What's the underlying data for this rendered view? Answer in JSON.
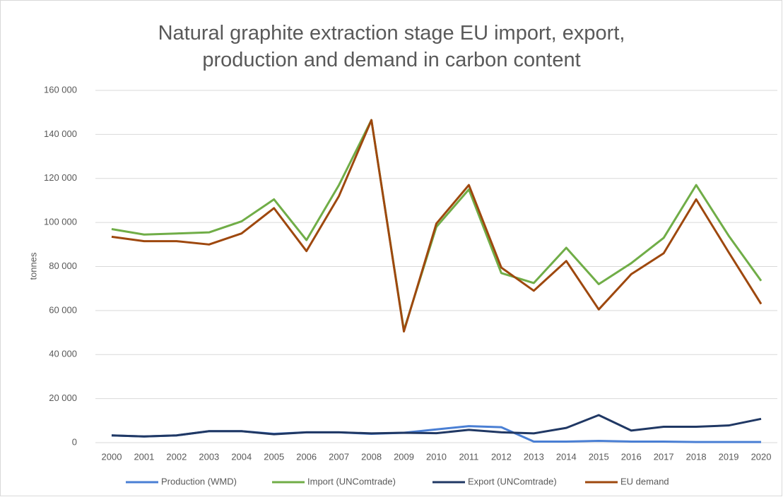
{
  "chart_data": {
    "type": "line",
    "title": "Natural graphite extraction stage EU import, export, production and demand in carbon content",
    "y_label": "tonnes",
    "categories": [
      "2000",
      "2001",
      "2002",
      "2003",
      "2004",
      "2005",
      "2006",
      "2007",
      "2008",
      "2009",
      "2010",
      "2011",
      "2012",
      "2013",
      "2014",
      "2015",
      "2016",
      "2017",
      "2018",
      "2019",
      "2020"
    ],
    "series": [
      {
        "name": "Production (WMD)",
        "color": "#4a7fd4",
        "values": [
          3300,
          2800,
          3300,
          5200,
          5200,
          4000,
          4700,
          4700,
          4000,
          4500,
          6000,
          7500,
          7000,
          500,
          500,
          800,
          500,
          500,
          300,
          300,
          300
        ]
      },
      {
        "name": "Import (UNComtrade)",
        "color": "#70ad47",
        "values": [
          97000,
          94500,
          95000,
          95500,
          100500,
          110500,
          92000,
          117000,
          146500,
          51000,
          98000,
          115000,
          77000,
          72500,
          88500,
          72000,
          81500,
          93000,
          117000,
          94000,
          73500
        ]
      },
      {
        "name": "Export (UNComtrade)",
        "color": "#203864",
        "values": [
          3300,
          2800,
          3300,
          5200,
          5200,
          3800,
          4700,
          4700,
          4200,
          4500,
          4300,
          5800,
          4700,
          4200,
          6700,
          12500,
          5500,
          7200,
          7200,
          7800,
          10800
        ]
      },
      {
        "name": "EU demand",
        "color": "#9e480e",
        "values": [
          93500,
          91500,
          91500,
          90000,
          95000,
          106500,
          87000,
          112000,
          146500,
          50500,
          99500,
          117000,
          79500,
          69000,
          82500,
          60500,
          76500,
          86000,
          110500,
          86500,
          63000
        ]
      }
    ],
    "ylim": [
      0,
      160000
    ],
    "yticks": [
      0,
      {
        "value": 20000,
        "label": "20 000"
      },
      {
        "value": 40000,
        "label": "40 000"
      },
      {
        "value": 60000,
        "label": "60 000"
      },
      {
        "value": 80000,
        "label": "80 000"
      },
      {
        "value": 100000,
        "label": "100 000"
      },
      {
        "value": 120000,
        "label": "120 000"
      },
      {
        "value": 140000,
        "label": "140 000"
      },
      {
        "value": 160000,
        "label": "160 000"
      }
    ],
    "grid": true,
    "legend": "bottom"
  }
}
